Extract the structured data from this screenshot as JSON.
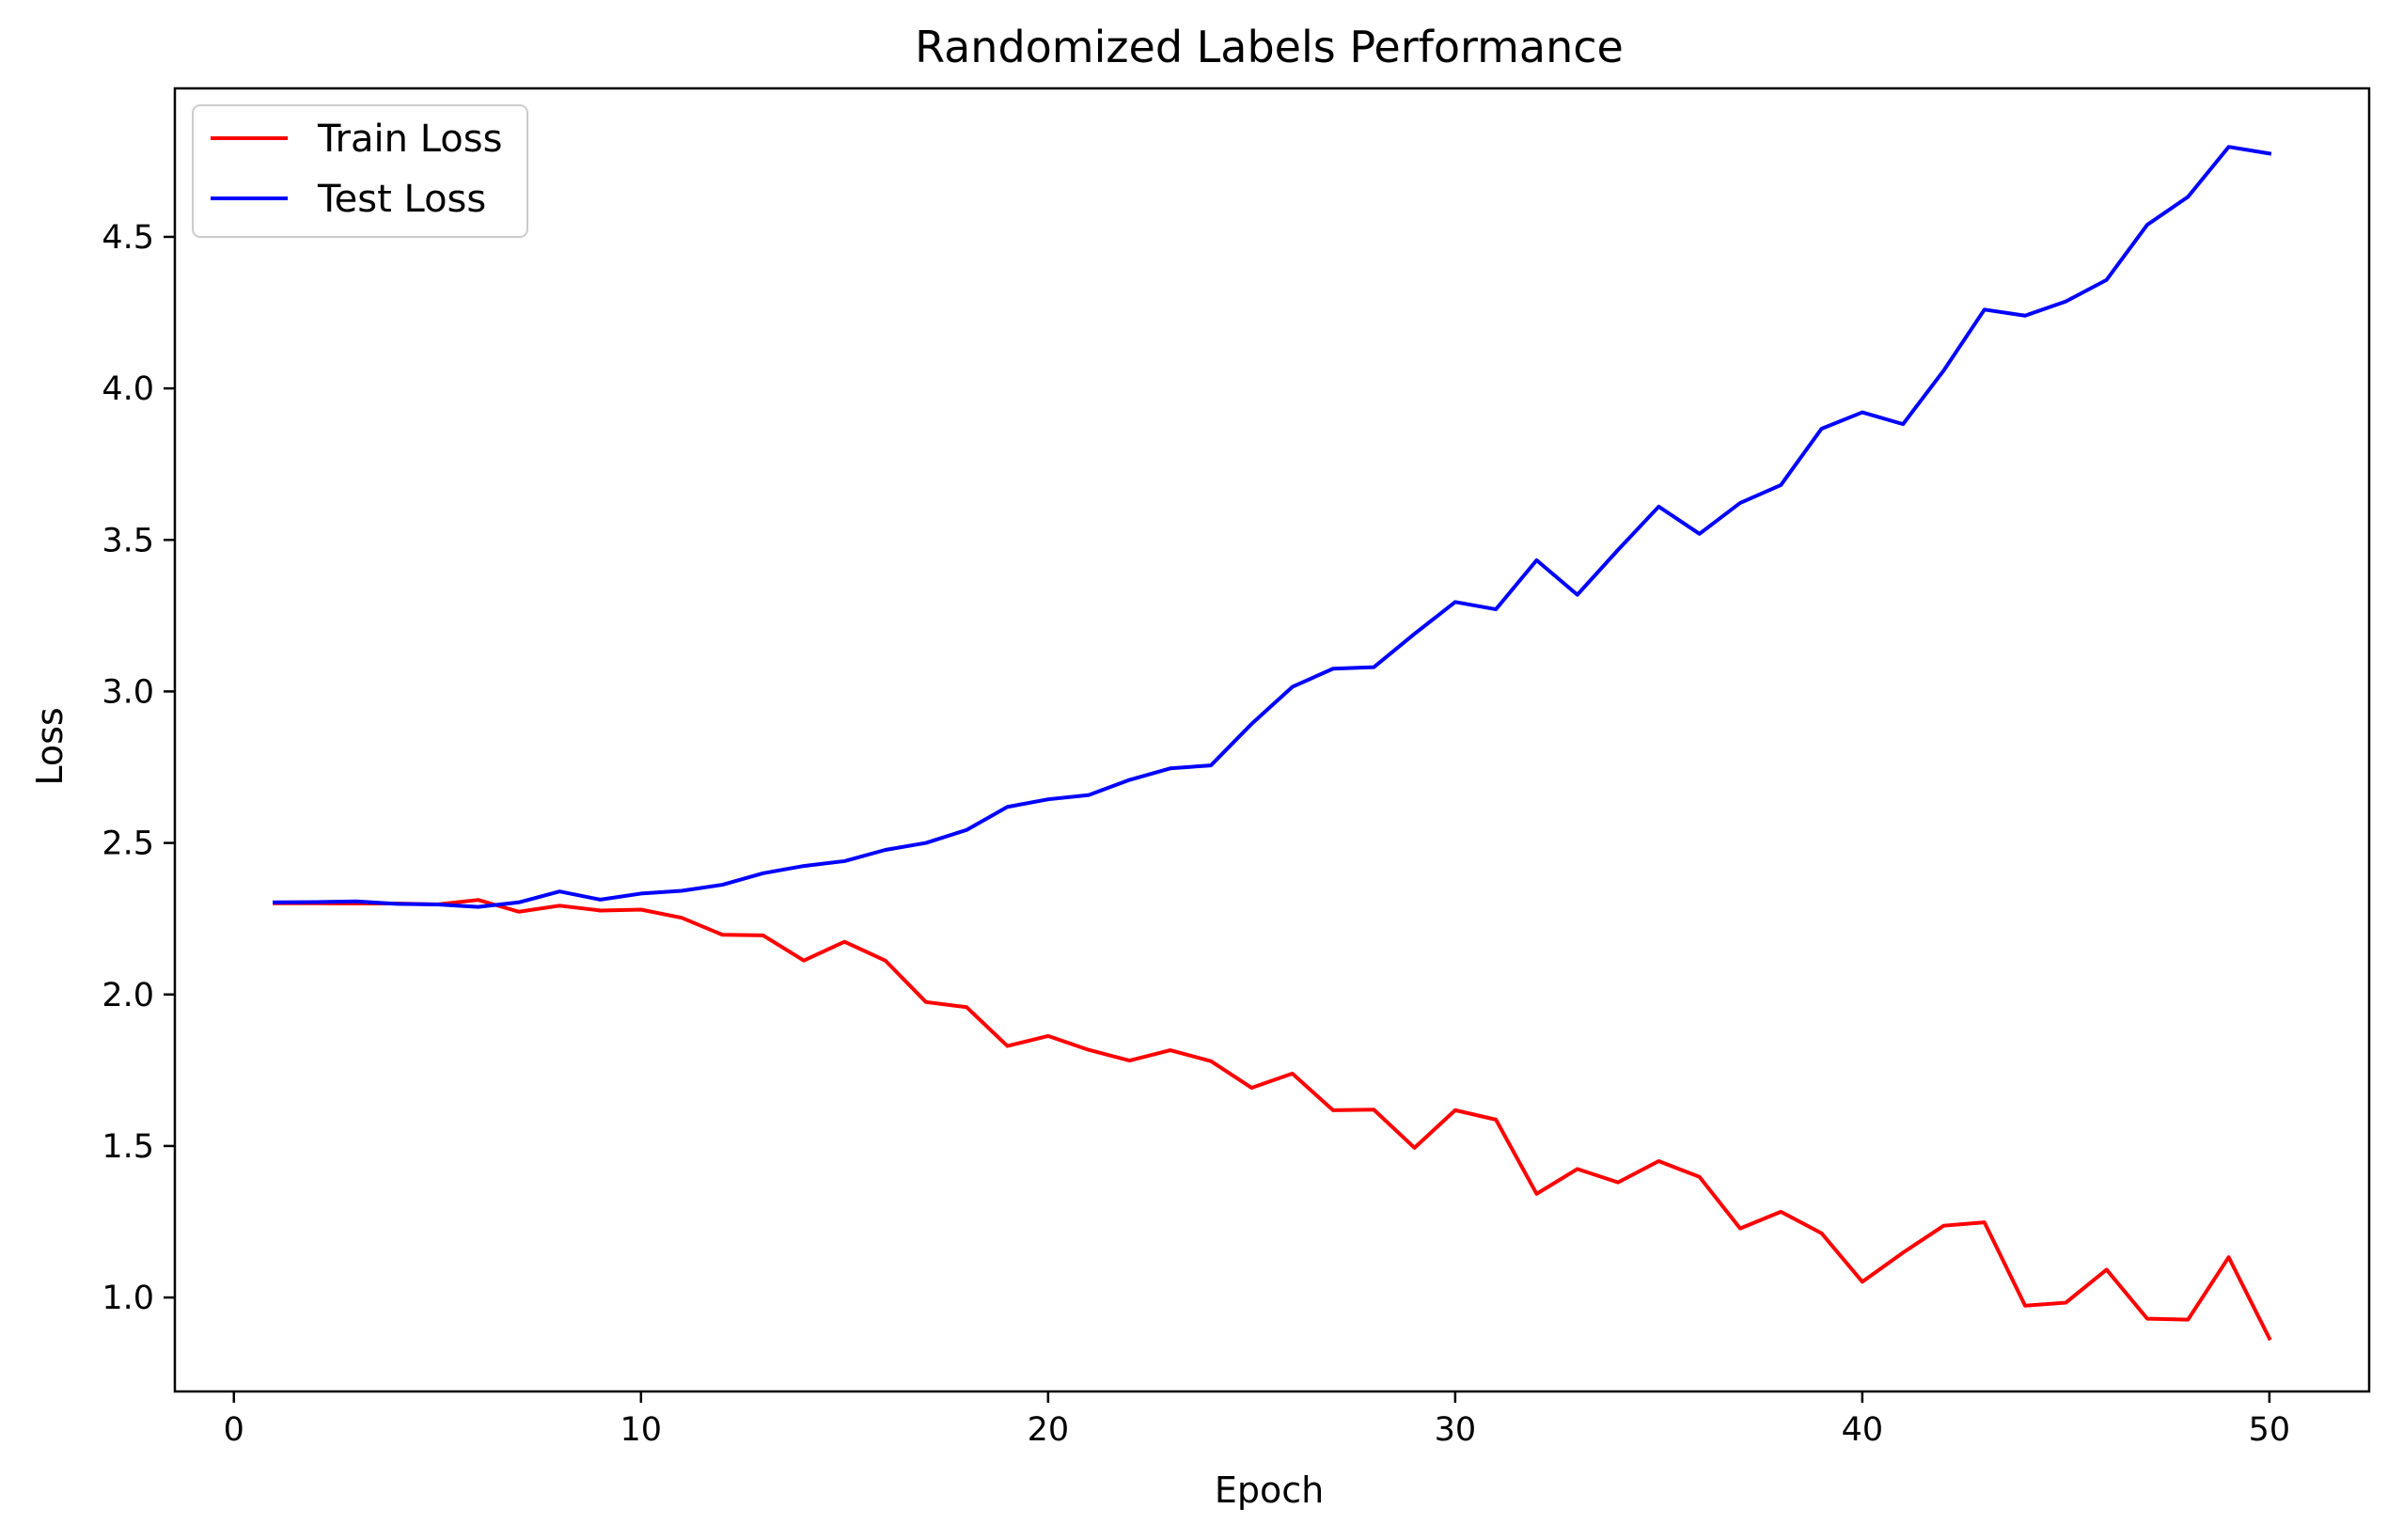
{
  "chart_data": {
    "type": "line",
    "title": "Randomized Labels Performance",
    "xlabel": "Epoch",
    "ylabel": "Loss",
    "xlim": [
      -1.45,
      52.45
    ],
    "ylim": [
      0.69,
      4.99
    ],
    "x_ticks": [
      0,
      10,
      20,
      30,
      40,
      50
    ],
    "x_tick_labels": [
      "0",
      "10",
      "20",
      "30",
      "40",
      "50"
    ],
    "y_ticks": [
      1.0,
      1.5,
      2.0,
      2.5,
      3.0,
      3.5,
      4.0,
      4.5
    ],
    "y_tick_labels": [
      "1.0",
      "1.5",
      "2.0",
      "2.5",
      "3.0",
      "3.5",
      "4.0",
      "4.5"
    ],
    "grid": false,
    "legend_position": "upper-left",
    "x": [
      1,
      2,
      3,
      4,
      5,
      6,
      7,
      8,
      9,
      10,
      11,
      12,
      13,
      14,
      15,
      16,
      17,
      18,
      19,
      20,
      21,
      22,
      23,
      24,
      25,
      26,
      27,
      28,
      29,
      30,
      31,
      32,
      33,
      34,
      35,
      36,
      37,
      38,
      39,
      40,
      41,
      42,
      43,
      44,
      45,
      46,
      47,
      48,
      49,
      50
    ],
    "series": [
      {
        "name": "Train Loss",
        "color": "#ff0000",
        "values": [
          2.301,
          2.301,
          2.3,
          2.3,
          2.297,
          2.312,
          2.273,
          2.293,
          2.277,
          2.28,
          2.253,
          2.197,
          2.195,
          2.112,
          2.174,
          2.112,
          1.975,
          1.958,
          1.83,
          1.863,
          1.817,
          1.782,
          1.816,
          1.78,
          1.692,
          1.739,
          1.618,
          1.62,
          1.494,
          1.618,
          1.587,
          1.342,
          1.424,
          1.38,
          1.45,
          1.398,
          1.228,
          1.283,
          1.212,
          1.052,
          1.148,
          1.237,
          1.248,
          0.973,
          0.983,
          1.092,
          0.93,
          0.927,
          1.133,
          0.865
        ]
      },
      {
        "name": "Test Loss",
        "color": "#0000ff",
        "values": [
          2.304,
          2.305,
          2.307,
          2.299,
          2.297,
          2.289,
          2.304,
          2.34,
          2.313,
          2.333,
          2.342,
          2.362,
          2.4,
          2.424,
          2.44,
          2.477,
          2.5,
          2.543,
          2.619,
          2.644,
          2.658,
          2.708,
          2.746,
          2.756,
          2.893,
          3.015,
          3.075,
          3.08,
          3.19,
          3.295,
          3.271,
          3.433,
          3.319,
          3.467,
          3.61,
          3.52,
          3.622,
          3.681,
          3.867,
          3.921,
          3.882,
          4.059,
          4.26,
          4.24,
          4.287,
          4.358,
          4.54,
          4.632,
          4.797,
          4.775
        ]
      }
    ]
  }
}
